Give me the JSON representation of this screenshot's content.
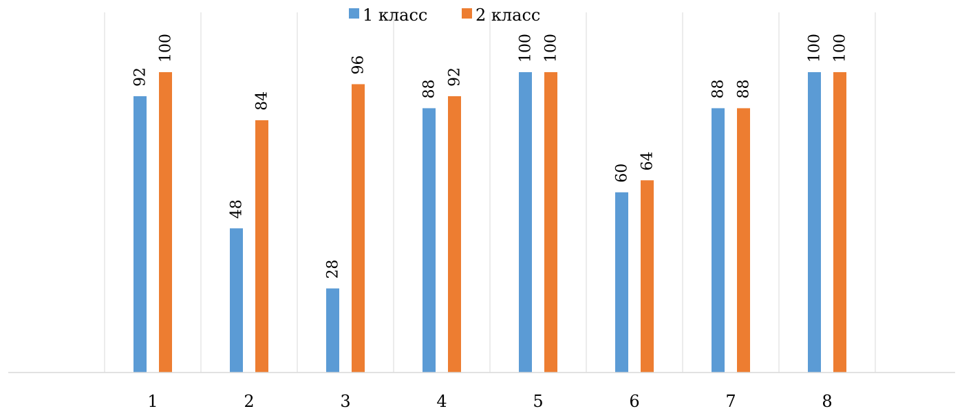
{
  "chart_data": {
    "type": "bar",
    "categories": [
      "1",
      "2",
      "3",
      "4",
      "5",
      "6",
      "7",
      "8"
    ],
    "series": [
      {
        "name": "1 класс",
        "color": "#5b9bd5",
        "values": [
          92,
          48,
          28,
          88,
          100,
          60,
          88,
          100
        ]
      },
      {
        "name": "2 класс",
        "color": "#ed7d31",
        "values": [
          100,
          84,
          96,
          92,
          100,
          64,
          88,
          100
        ]
      }
    ],
    "ylim": [
      0,
      100
    ],
    "gridlines": "vertical",
    "legend": "top-center",
    "data_labels": "rotated, above bars"
  }
}
